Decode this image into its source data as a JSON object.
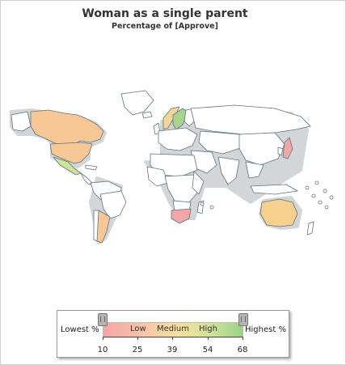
{
  "title": "Woman as a single parent",
  "subtitle": "Percentage of [Approve]",
  "colors": {
    "land": "#ffffff",
    "border": "#5f7380",
    "shadow": "#c9cdd0",
    "low": "#f2a6a6",
    "lowMid": "#f8c7a5",
    "medium": "#f6d59a",
    "mediumHigh": "#d6e59a",
    "high": "#9cd08a"
  },
  "map": {
    "regions": [
      {
        "name": "Canada",
        "fill": "#f8c796"
      },
      {
        "name": "United States",
        "fill": "#f8c796"
      },
      {
        "name": "Mexico",
        "fill": "#cfe39a"
      },
      {
        "name": "Argentina",
        "fill": "#f8c796"
      },
      {
        "name": "Sweden",
        "fill": "#a9d48c"
      },
      {
        "name": "Norway",
        "fill": "#f6d59a"
      },
      {
        "name": "Japan",
        "fill": "#f2a6a6"
      },
      {
        "name": "Australia",
        "fill": "#f8d08e"
      },
      {
        "name": "South Africa",
        "fill": "#f2a6a6"
      }
    ]
  },
  "legend": {
    "lowest": "Lowest %",
    "highest": "Highest %",
    "bands": [
      "Low",
      "Medium",
      "High"
    ],
    "ticks": [
      "10",
      "25",
      "39",
      "54",
      "68"
    ],
    "min": 10,
    "max": 68
  }
}
